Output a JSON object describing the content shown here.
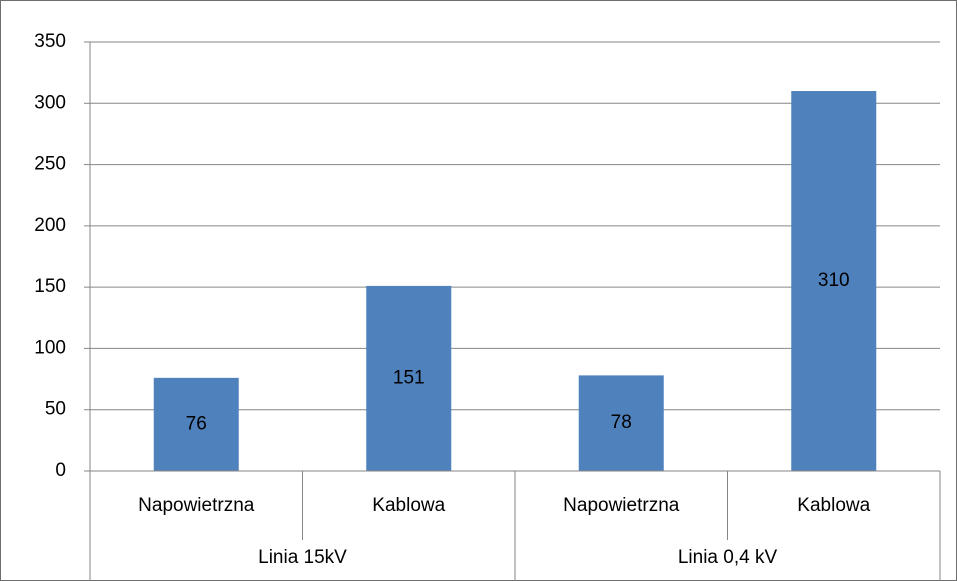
{
  "chart_data": {
    "type": "bar",
    "groups": [
      {
        "name": "Linia 15kV",
        "categories": [
          "Napowietrzna",
          "Kablowa"
        ],
        "values": [
          76,
          151
        ]
      },
      {
        "name": "Linia 0,4 kV",
        "categories": [
          "Napowietrzna",
          "Kablowa"
        ],
        "values": [
          78,
          310
        ]
      }
    ],
    "color": "#4f81bd",
    "ylim": [
      0,
      350
    ],
    "yticks": [
      0,
      50,
      100,
      150,
      200,
      250,
      300,
      350
    ],
    "grid": true
  }
}
